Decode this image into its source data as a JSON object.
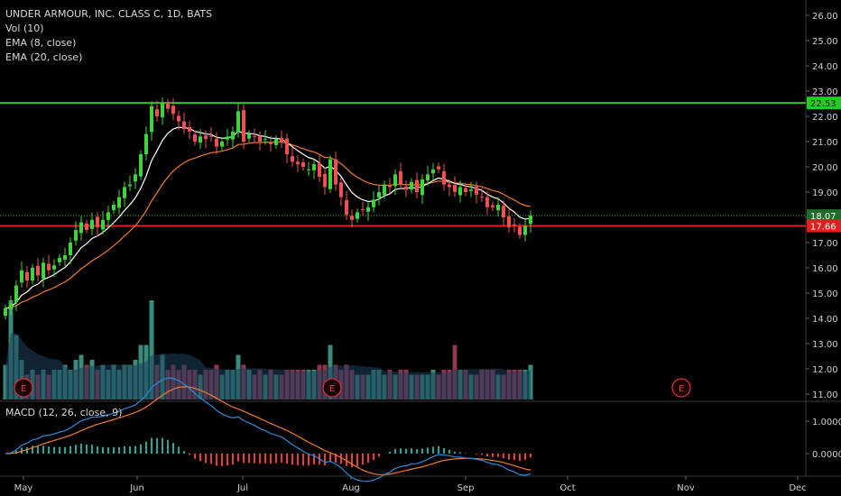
{
  "legend": {
    "symbol": "UNDER ARMOUR, INC. CLASS C, 1D, BATS",
    "volume": "Vol (10)",
    "ema_fast": "EMA (8, close)",
    "ema_slow": "EMA (20, close)"
  },
  "macd_legend": "MACD (12, 26, close, 9)",
  "colors": {
    "up": "#26a69a",
    "down": "#ef5350",
    "bull_candle": "#3cd63c",
    "bear_candle": "#f05050",
    "ema_fast": "#ffffff",
    "ema_slow": "#f07a2d",
    "resistance": "#22cc22",
    "support": "#e02020",
    "vol_ma": "#1b3f5b",
    "macd": "#2b8ad8",
    "signal": "#f07a2d"
  },
  "price_scale": {
    "ticks": [
      "26.00",
      "25.00",
      "24.00",
      "23.00",
      "22.00",
      "21.00",
      "20.00",
      "19.00",
      "18.00",
      "17.00",
      "16.00",
      "15.00",
      "14.00",
      "13.00",
      "12.00",
      "11.00"
    ]
  },
  "macd_scale": {
    "ticks": [
      "1.0000",
      "0.0000"
    ]
  },
  "badges": {
    "resistance": "22.53",
    "last_close": "18.07",
    "support": "17.66"
  },
  "earnings_marker": "E",
  "x_labels": [
    "May",
    "Jun",
    "Jul",
    "Aug",
    "Sep",
    "Oct",
    "Nov",
    "Dec"
  ],
  "chart_data": {
    "type": "candlestick",
    "title": "UNDER ARMOUR, INC. CLASS C, 1D, BATS",
    "ylim": [
      11,
      26.5
    ],
    "horizontal_lines": [
      {
        "name": "resistance",
        "value": 22.53
      },
      {
        "name": "support",
        "value": 17.66
      },
      {
        "name": "last",
        "value": 18.07
      }
    ],
    "closes": [
      14.4,
      14.6,
      15.3,
      15.9,
      15.5,
      16.0,
      15.7,
      16.2,
      15.9,
      16.1,
      16.4,
      16.5,
      17.0,
      17.5,
      17.8,
      17.5,
      17.9,
      17.6,
      17.9,
      18.2,
      18.5,
      18.8,
      19.2,
      19.3,
      19.7,
      20.5,
      21.3,
      22.4,
      22.0,
      22.5,
      22.3,
      22.1,
      21.8,
      21.5,
      21.4,
      21.0,
      21.2,
      21.1,
      21.2,
      20.8,
      21.0,
      21.2,
      21.4,
      22.2,
      21.0,
      21.3,
      21.2,
      21.0,
      21.1,
      20.9,
      21.1,
      21.0,
      20.5,
      20.2,
      20.1,
      20.0,
      19.9,
      20.1,
      19.6,
      19.2,
      20.3,
      19.3,
      18.8,
      18.1,
      17.9,
      18.2,
      18.3,
      18.4,
      18.7,
      19.0,
      19.3,
      19.2,
      19.7,
      19.3,
      19.1,
      19.4,
      19.0,
      19.5,
      19.7,
      19.9,
      19.9,
      19.3,
      19.2,
      19.0,
      19.2,
      19.0,
      19.1,
      18.9,
      18.8,
      18.4,
      18.4,
      18.5,
      18.0,
      17.6,
      17.7,
      17.3,
      17.66,
      18.07
    ],
    "volume_relative": [
      0.35,
      1.0,
      0.65,
      0.4,
      0.25,
      0.3,
      0.25,
      0.3,
      0.25,
      0.3,
      0.3,
      0.35,
      0.3,
      0.4,
      0.45,
      0.35,
      0.4,
      0.3,
      0.35,
      0.3,
      0.35,
      0.3,
      0.35,
      0.35,
      0.4,
      0.55,
      0.55,
      1.0,
      0.35,
      0.45,
      0.3,
      0.35,
      0.3,
      0.35,
      0.3,
      0.3,
      0.25,
      0.3,
      0.3,
      0.35,
      0.25,
      0.3,
      0.3,
      0.45,
      0.35,
      0.3,
      0.25,
      0.3,
      0.25,
      0.3,
      0.25,
      0.25,
      0.3,
      0.3,
      0.3,
      0.3,
      0.3,
      0.3,
      0.35,
      0.35,
      0.55,
      0.35,
      0.3,
      0.35,
      0.3,
      0.25,
      0.25,
      0.25,
      0.3,
      0.3,
      0.25,
      0.3,
      0.25,
      0.3,
      0.3,
      0.25,
      0.25,
      0.25,
      0.25,
      0.3,
      0.25,
      0.3,
      0.3,
      0.55,
      0.3,
      0.3,
      0.25,
      0.25,
      0.3,
      0.3,
      0.3,
      0.25,
      0.25,
      0.3,
      0.3,
      0.3,
      0.3,
      0.35
    ]
  }
}
